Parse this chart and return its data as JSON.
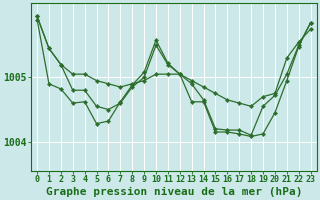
{
  "bg_color": "#cce8e8",
  "grid_color": "#ffffff",
  "line_color": "#2d6e2d",
  "marker_color": "#2d6e2d",
  "xlabel": "Graphe pression niveau de la mer (hPa)",
  "xlabel_color": "#1a6e1a",
  "ylabel_ticks": [
    1004,
    1005
  ],
  "xlim": [
    -0.5,
    23.5
  ],
  "ylim": [
    1003.55,
    1006.15
  ],
  "s1": [
    1005.95,
    1005.45,
    1005.2,
    1005.05,
    1005.05,
    1004.95,
    1004.9,
    1004.85,
    1004.9,
    1004.95,
    1005.05,
    1005.05,
    1005.05,
    1004.95,
    1004.85,
    1004.75,
    1004.65,
    1004.6,
    1004.55,
    1004.7,
    1004.75,
    1005.3,
    1005.55,
    1005.75
  ],
  "s2": [
    1005.95,
    1005.45,
    1005.2,
    1004.8,
    1004.8,
    1004.55,
    1004.5,
    1004.6,
    1004.85,
    1005.0,
    1005.5,
    1005.2,
    1005.05,
    1004.9,
    1004.65,
    1004.2,
    1004.18,
    1004.18,
    1004.1,
    1004.55,
    1004.72,
    1005.05,
    1005.5,
    1005.85
  ],
  "s3": [
    1005.9,
    1004.9,
    1004.82,
    1004.6,
    1004.62,
    1004.28,
    1004.32,
    1004.62,
    1004.88,
    1005.08,
    1005.58,
    1005.22,
    1005.05,
    1004.62,
    1004.62,
    1004.15,
    1004.15,
    1004.12,
    1004.08,
    1004.12,
    1004.45,
    1004.95,
    1005.48,
    1005.85
  ],
  "xtick_labels": [
    "0",
    "1",
    "2",
    "3",
    "4",
    "5",
    "6",
    "7",
    "8",
    "9",
    "10",
    "11",
    "12",
    "13",
    "14",
    "15",
    "16",
    "17",
    "18",
    "19",
    "20",
    "21",
    "22",
    "23"
  ],
  "tick_color": "#1a6e1a",
  "tick_fontsize": 6.0,
  "xlabel_fontsize": 8.0,
  "ytick_fontsize": 7.0
}
